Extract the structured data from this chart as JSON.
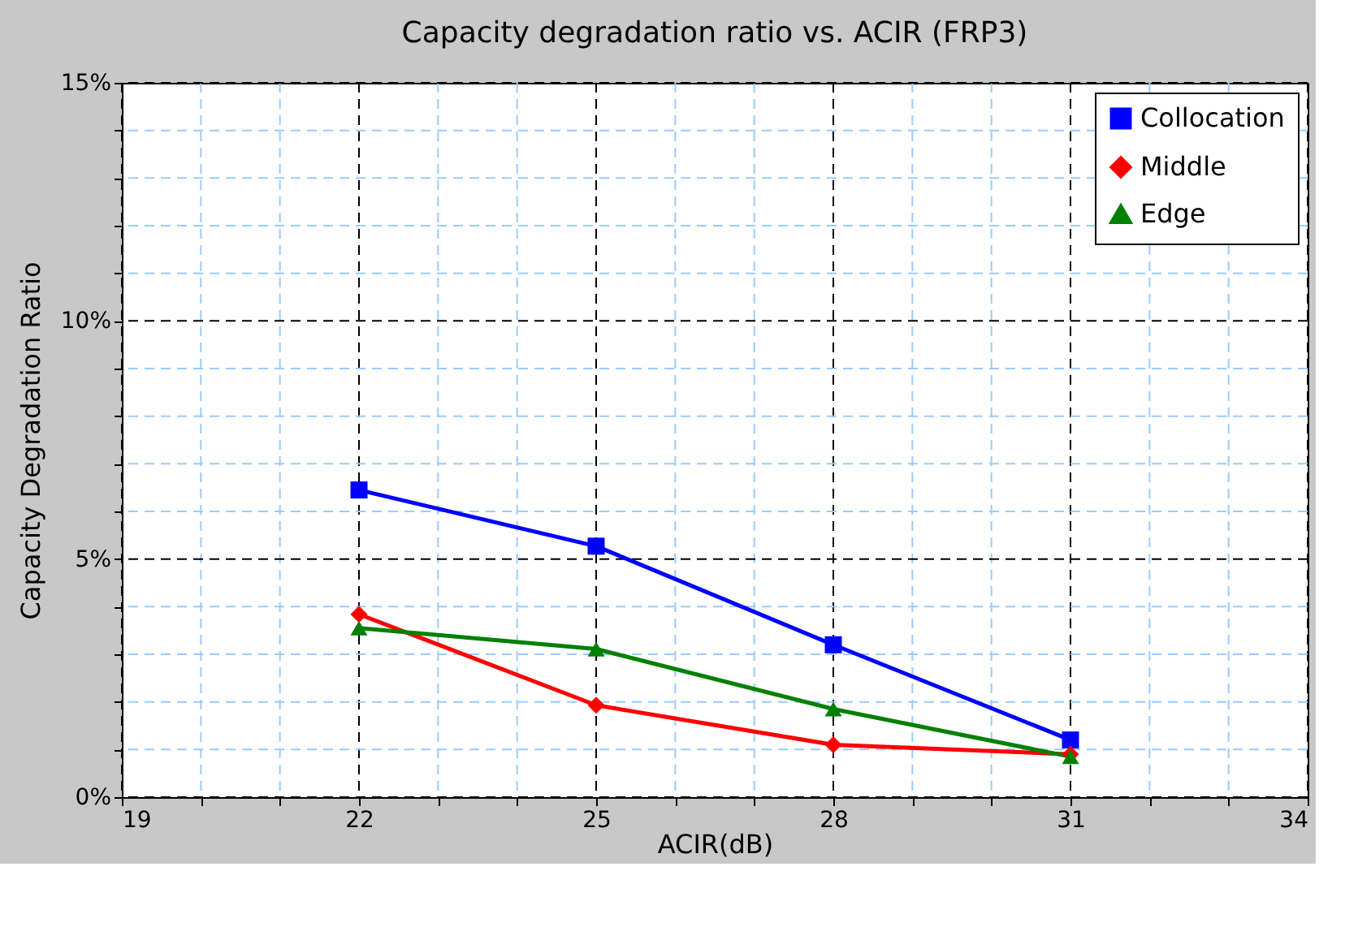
{
  "chart_data": {
    "type": "line",
    "title": "Capacity degradation ratio vs. ACIR (FRP3)",
    "xlabel": "ACIR(dB)",
    "ylabel": "Capacity Degradation Ratio",
    "x": [
      22,
      25,
      28,
      31
    ],
    "series": [
      {
        "name": "Collocation",
        "color": "#0000ff",
        "marker": "square",
        "values": [
          6.45,
          5.27,
          3.2,
          1.2
        ]
      },
      {
        "name": "Middle",
        "color": "#ff0000",
        "marker": "diamond",
        "values": [
          3.84,
          1.93,
          1.1,
          0.9
        ]
      },
      {
        "name": "Edge",
        "color": "#008000",
        "marker": "triangle",
        "values": [
          3.55,
          3.11,
          1.85,
          0.85
        ]
      }
    ],
    "xlim": [
      19,
      34
    ],
    "xticks": [
      19,
      {
        "value": 20,
        "label": null
      },
      {
        "value": 21,
        "label": null
      },
      22,
      {
        "value": 23,
        "label": null
      },
      {
        "value": 24,
        "label": null
      },
      25,
      {
        "value": 26,
        "label": null
      },
      {
        "value": 27,
        "label": null
      },
      28,
      {
        "value": 29,
        "label": null
      },
      {
        "value": 30,
        "label": null
      },
      31,
      {
        "value": 32,
        "label": null
      },
      {
        "value": 33,
        "label": null
      },
      34
    ],
    "ylim": [
      0,
      15
    ],
    "yticks": [
      {
        "value": 0,
        "label": "0%"
      },
      {
        "value": 1,
        "label": null
      },
      {
        "value": 2,
        "label": null
      },
      {
        "value": 3,
        "label": null
      },
      {
        "value": 4,
        "label": null
      },
      {
        "value": 5,
        "label": "5%"
      },
      {
        "value": 6,
        "label": null
      },
      {
        "value": 7,
        "label": null
      },
      {
        "value": 8,
        "label": null
      },
      {
        "value": 9,
        "label": null
      },
      {
        "value": 10,
        "label": "10%"
      },
      {
        "value": 11,
        "label": null
      },
      {
        "value": 12,
        "label": null
      },
      {
        "value": 13,
        "label": null
      },
      {
        "value": 14,
        "label": null
      },
      {
        "value": 15,
        "label": "15%"
      }
    ],
    "grid": true,
    "legend": "top right",
    "line_style": "solid"
  }
}
